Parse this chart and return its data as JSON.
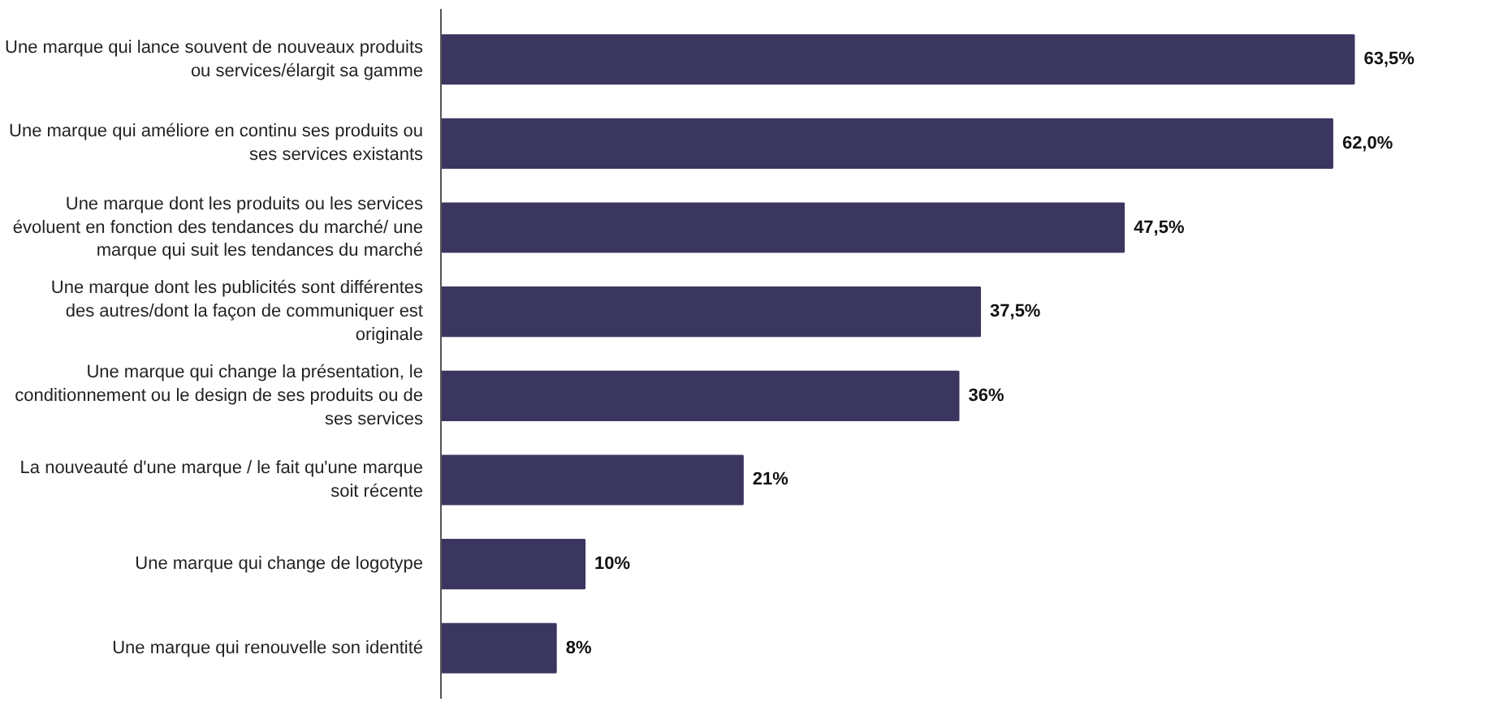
{
  "chart_data": {
    "type": "bar",
    "orientation": "horizontal",
    "categories": [
      "Une marque qui lance souvent de nouveaux produits ou services/élargit sa gamme",
      "Une marque qui améliore en continu ses produits ou ses services existants",
      "Une marque dont les produits ou les services évoluent en fonction des tendances du marché/ une marque qui suit les tendances du marché",
      "Une marque dont les publicités sont différentes des autres/dont la façon de communiquer est originale",
      "Une marque qui change la présentation, le conditionnement ou le design de ses produits ou de ses services",
      "La nouveauté d'une marque / le fait qu'une marque soit récente",
      "Une marque qui change de logotype",
      "Une marque qui renouvelle son identité"
    ],
    "values": [
      63.5,
      62.0,
      47.5,
      37.5,
      36,
      21,
      10,
      8
    ],
    "value_labels": [
      "63,5%",
      "62,0%",
      "47,5%",
      "37,5%",
      "36%",
      "21%",
      "10%",
      "8%"
    ],
    "color": "#3b3660",
    "tick_labels": "y"
  }
}
